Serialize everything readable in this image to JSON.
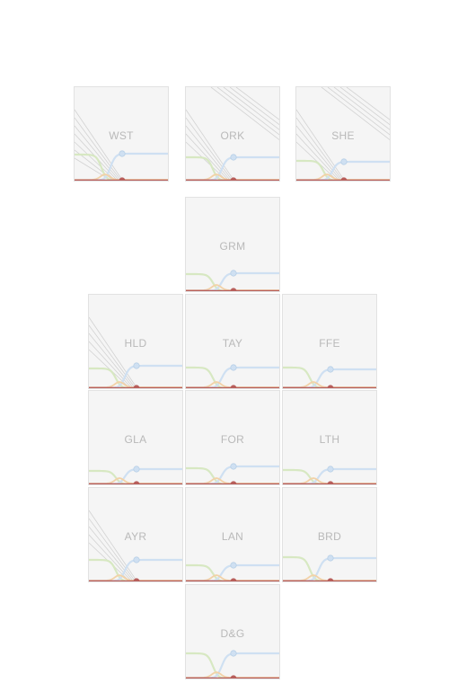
{
  "chart_data": {
    "type": "tile-grid small multiples (line)",
    "title": "",
    "xlabel": "",
    "ylabel": "",
    "series": [
      {
        "name": "",
        "color": "#cfe0f2"
      },
      {
        "name": "",
        "color": "#d7e8c2"
      },
      {
        "name": "",
        "color": "#f2d2a8"
      },
      {
        "name": "",
        "color": "#b85f5c"
      },
      {
        "name": "",
        "color": "#a58bbf"
      }
    ],
    "tiles": [
      {
        "label": "WST",
        "col": 0.3,
        "row": 0,
        "blue_level": 0.3,
        "green_level": 0.29,
        "hatch": "left-heavy"
      },
      {
        "label": "ORK",
        "col": 1,
        "row": 0,
        "blue_level": 0.26,
        "green_level": 0.26,
        "hatch": "both"
      },
      {
        "label": "SHE",
        "col": 2,
        "row": 0,
        "blue_level": 0.21,
        "green_level": 0.22,
        "hatch": "both"
      },
      {
        "label": "GRM",
        "col": 1,
        "row": 1,
        "blue_level": 0.2,
        "green_level": 0.19,
        "hatch": "none"
      },
      {
        "label": "HLD",
        "col": 0,
        "row": 2,
        "blue_level": 0.25,
        "green_level": 0.22,
        "hatch": "left"
      },
      {
        "label": "TAY",
        "col": 1,
        "row": 2,
        "blue_level": 0.23,
        "green_level": 0.23,
        "hatch": "none"
      },
      {
        "label": "FFE",
        "col": 2,
        "row": 2,
        "blue_level": 0.21,
        "green_level": 0.23,
        "hatch": "none"
      },
      {
        "label": "GLA",
        "col": 0,
        "row": 3,
        "blue_level": 0.17,
        "green_level": 0.15,
        "hatch": "none"
      },
      {
        "label": "FOR",
        "col": 1,
        "row": 3,
        "blue_level": 0.2,
        "green_level": 0.18,
        "hatch": "none"
      },
      {
        "label": "LTH",
        "col": 2,
        "row": 3,
        "blue_level": 0.17,
        "green_level": 0.16,
        "hatch": "none"
      },
      {
        "label": "AYR",
        "col": 0,
        "row": 4,
        "blue_level": 0.24,
        "green_level": 0.24,
        "hatch": "left"
      },
      {
        "label": "LAN",
        "col": 1,
        "row": 4,
        "blue_level": 0.18,
        "green_level": 0.18,
        "hatch": "none"
      },
      {
        "label": "BRD",
        "col": 2,
        "row": 4,
        "blue_level": 0.26,
        "green_level": 0.27,
        "hatch": "none"
      },
      {
        "label": "D&G",
        "col": 1,
        "row": 5,
        "blue_level": 0.28,
        "green_level": 0.28,
        "hatch": "none"
      }
    ]
  }
}
